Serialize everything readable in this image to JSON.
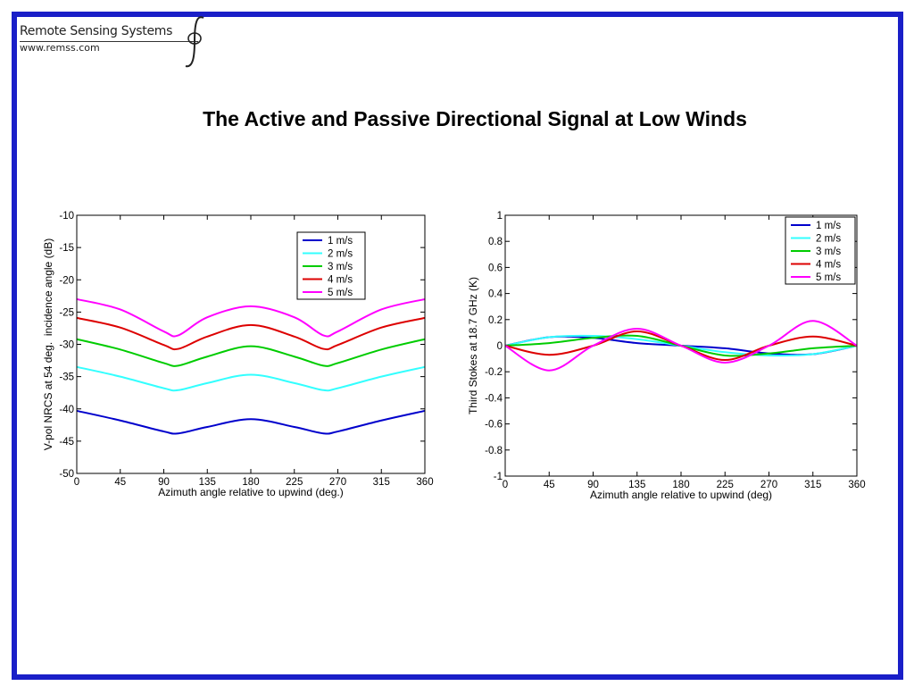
{
  "header": {
    "org_name": "Remote Sensing Systems",
    "org_url": "www.remss.com",
    "title": "The Active and Passive Directional Signal at Low Winds"
  },
  "colors": {
    "frame": "#1a1fc8",
    "series": [
      "#0000cc",
      "#33ffff",
      "#00cc00",
      "#dd0000",
      "#ff00ff"
    ]
  },
  "chart_data": [
    {
      "type": "line",
      "xlabel": "Azimuth angle relative to upwind (deg.)",
      "ylabel": "V-pol NRCS at 54 deg.  incidence angle (dB)",
      "xlim": [
        0,
        360
      ],
      "ylim": [
        -50,
        -10
      ],
      "xticks": [
        0,
        45,
        90,
        135,
        180,
        225,
        270,
        315,
        360
      ],
      "yticks": [
        -10,
        -15,
        -20,
        -25,
        -30,
        -35,
        -40,
        -45,
        -50
      ],
      "legend_position": "top-right",
      "x": [
        0,
        45,
        90,
        105,
        135,
        180,
        225,
        255,
        270,
        315,
        360
      ],
      "series": [
        {
          "name": "1 m/s",
          "values": [
            -40.3,
            -41.8,
            -43.5,
            -43.8,
            -42.8,
            -41.6,
            -42.8,
            -43.8,
            -43.5,
            -41.8,
            -40.3
          ]
        },
        {
          "name": "2 m/s",
          "values": [
            -33.5,
            -35.0,
            -36.8,
            -37.1,
            -36.0,
            -34.7,
            -36.0,
            -37.1,
            -36.8,
            -35.0,
            -33.5
          ]
        },
        {
          "name": "3 m/s",
          "values": [
            -29.2,
            -30.8,
            -32.9,
            -33.3,
            -31.9,
            -30.3,
            -31.9,
            -33.3,
            -32.9,
            -30.8,
            -29.2
          ]
        },
        {
          "name": "4 m/s",
          "values": [
            -25.9,
            -27.4,
            -30.1,
            -30.7,
            -28.8,
            -27.0,
            -28.8,
            -30.7,
            -30.1,
            -27.4,
            -25.9
          ]
        },
        {
          "name": "5 m/s",
          "values": [
            -23.0,
            -24.6,
            -28.0,
            -28.6,
            -25.8,
            -24.1,
            -25.8,
            -28.6,
            -28.0,
            -24.6,
            -23.0
          ]
        }
      ]
    },
    {
      "type": "line",
      "xlabel": "Azimuth angle relative to upwind (deg)",
      "ylabel": "Third Stokes at 18.7 GHz (K)",
      "xlim": [
        0,
        360
      ],
      "ylim": [
        -1,
        1
      ],
      "xticks": [
        0,
        45,
        90,
        135,
        180,
        225,
        270,
        315,
        360
      ],
      "yticks": [
        1,
        0.8,
        0.6,
        0.4,
        0.2,
        0,
        -0.2,
        -0.4,
        -0.6,
        -0.8,
        -1
      ],
      "legend_position": "top-right",
      "x": [
        0,
        45,
        90,
        135,
        180,
        225,
        270,
        315,
        360
      ],
      "series": [
        {
          "name": "1 m/s",
          "values": [
            0.0,
            0.065,
            0.06,
            0.02,
            0.0,
            -0.02,
            -0.06,
            -0.065,
            0.0
          ]
        },
        {
          "name": "2 m/s",
          "values": [
            0.0,
            0.065,
            0.075,
            0.05,
            0.0,
            -0.05,
            -0.075,
            -0.065,
            0.0
          ]
        },
        {
          "name": "3 m/s",
          "values": [
            0.0,
            0.02,
            0.06,
            0.075,
            0.0,
            -0.075,
            -0.06,
            -0.02,
            0.0
          ]
        },
        {
          "name": "4 m/s",
          "values": [
            0.0,
            -0.07,
            0.0,
            0.11,
            0.0,
            -0.11,
            0.0,
            0.07,
            0.0
          ]
        },
        {
          "name": "5 m/s",
          "values": [
            0.0,
            -0.19,
            0.0,
            0.13,
            0.0,
            -0.13,
            0.0,
            0.19,
            0.0
          ]
        }
      ]
    }
  ]
}
